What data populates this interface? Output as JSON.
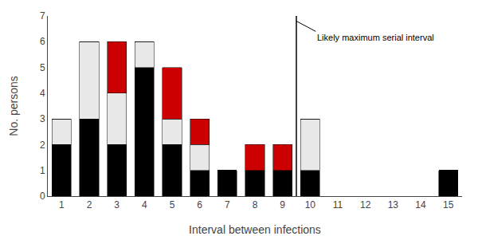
{
  "chart_data": {
    "type": "bar",
    "stacked": true,
    "x": [
      1,
      2,
      3,
      4,
      5,
      6,
      7,
      8,
      9,
      10,
      11,
      12,
      13,
      14,
      15
    ],
    "series": [
      {
        "color": "#000000",
        "values": [
          2,
          3,
          2,
          5,
          2,
          1,
          1,
          1,
          1,
          1,
          0,
          0,
          0,
          0,
          1
        ]
      },
      {
        "color": "#e8e8e8",
        "values": [
          1,
          3,
          2,
          1,
          1,
          1,
          0,
          0,
          0,
          2,
          0,
          0,
          0,
          0,
          0
        ]
      },
      {
        "color": "#cc0000",
        "values": [
          0,
          0,
          2,
          0,
          2,
          1,
          0,
          1,
          1,
          0,
          0,
          0,
          0,
          0,
          0
        ]
      }
    ],
    "xlabel": "Interval between infections",
    "ylabel": "No. persons",
    "xlim": [
      0.5,
      15.5
    ],
    "xticks": [
      1,
      2,
      3,
      4,
      5,
      6,
      7,
      8,
      9,
      10,
      11,
      12,
      13,
      14,
      15
    ],
    "ylim": [
      0,
      7
    ],
    "yticks": [
      0,
      1,
      2,
      3,
      4,
      5,
      6,
      7
    ],
    "vertical_line": 9.5,
    "annotations": [
      {
        "text": "Likely maximum serial interval",
        "x": 10.2,
        "y": 6.4,
        "arrow_x": 9.5,
        "arrow_y": 6.8
      }
    ],
    "grid": false,
    "legend": false
  }
}
